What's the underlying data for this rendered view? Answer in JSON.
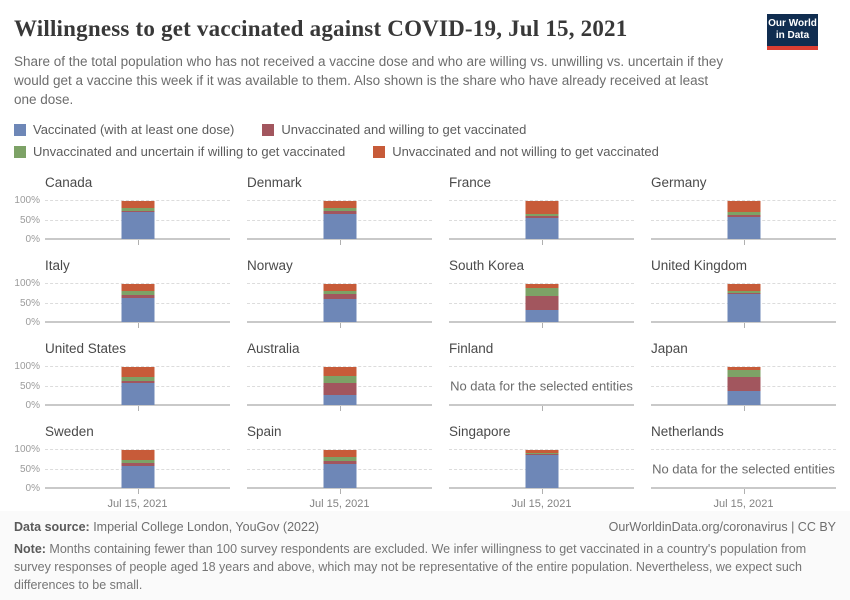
{
  "header": {
    "title": "Willingness to get vaccinated against COVID-19, Jul 15, 2021",
    "logo_line1": "Our World",
    "logo_line2": "in Data"
  },
  "subtitle": "Share of the total population who has not received a vaccine dose and who are willing vs. unwilling vs. uncertain if they would get a vaccine this week if it was available to them. Also shown is the share who have already received at least one dose.",
  "chart_data": {
    "type": "bar",
    "stacked": true,
    "unit": "%",
    "ylim": [
      0,
      100
    ],
    "yticks": [
      "100%",
      "50%",
      "0%"
    ],
    "x_label": "Jul 15, 2021",
    "legend_position": "top",
    "grid": "dashed horizontal at 0/50/100",
    "series_labels": [
      "Vaccinated (with at least one dose)",
      "Unvaccinated and willing to get vaccinated",
      "Unvaccinated and uncertain if willing to get vaccinated",
      "Unvaccinated and not willing to get vaccinated"
    ],
    "colors": [
      "#6e87b7",
      "#a2565e",
      "#7da266",
      "#c75b39"
    ],
    "no_data_message": "No data for the selected entities",
    "facets": [
      {
        "name": "Canada",
        "values": [
          70,
          4,
          8,
          18
        ]
      },
      {
        "name": "Denmark",
        "values": [
          66,
          6,
          9,
          19
        ]
      },
      {
        "name": "France",
        "values": [
          54,
          5,
          7,
          34
        ]
      },
      {
        "name": "Germany",
        "values": [
          58,
          5,
          8,
          29
        ]
      },
      {
        "name": "Italy",
        "values": [
          62,
          8,
          10,
          20
        ]
      },
      {
        "name": "Norway",
        "values": [
          59,
          14,
          8,
          19
        ]
      },
      {
        "name": "South Korea",
        "values": [
          32,
          35,
          21,
          12
        ]
      },
      {
        "name": "United Kingdom",
        "values": [
          72,
          3,
          5,
          20
        ]
      },
      {
        "name": "United States",
        "values": [
          57,
          5,
          10,
          28
        ]
      },
      {
        "name": "Australia",
        "values": [
          27,
          30,
          19,
          24
        ]
      },
      {
        "name": "Finland",
        "no_data": true
      },
      {
        "name": "Japan",
        "values": [
          36,
          36,
          18,
          10
        ]
      },
      {
        "name": "Sweden",
        "values": [
          58,
          7,
          8,
          27
        ]
      },
      {
        "name": "Spain",
        "values": [
          62,
          9,
          9,
          20
        ]
      },
      {
        "name": "Singapore",
        "values": [
          85,
          3,
          4,
          8
        ]
      },
      {
        "name": "Netherlands",
        "no_data": true
      }
    ]
  },
  "footer": {
    "source_label": "Data source:",
    "source_value": " Imperial College London, YouGov (2022)",
    "link": "OurWorldinData.org/coronavirus | CC BY",
    "note_label": "Note:",
    "note_value": " Months containing fewer than 100 survey respondents are excluded. We infer willingness to get vaccinated in a country's population from survey responses of people aged 18 years and above, which may not be representative of the entire population. Nevertheless, we expect such differences to be small."
  }
}
